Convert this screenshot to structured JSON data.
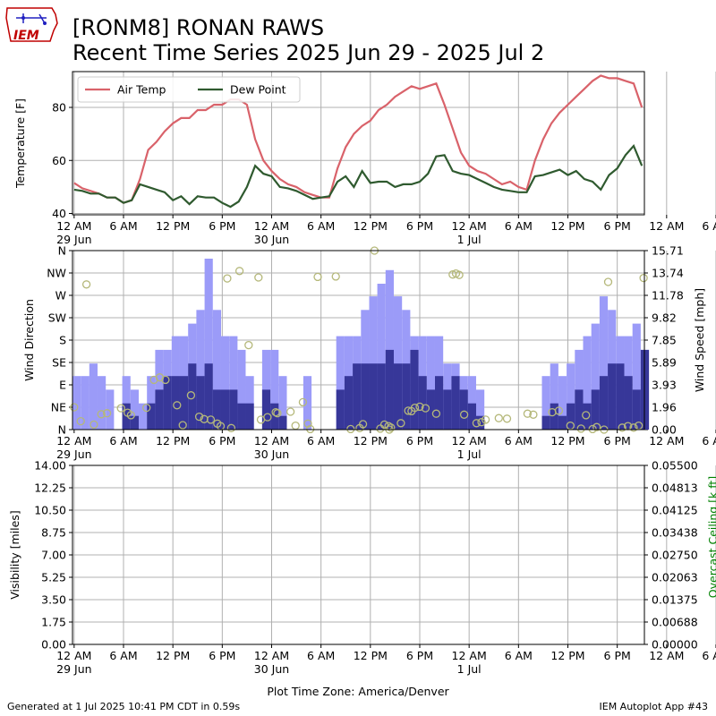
{
  "header": {
    "title_line1": "[RONM8] RONAN RAWS",
    "title_line2": "Recent Time Series 2025 Jun 29 - 2025 Jul 2",
    "logo_text": "IEM"
  },
  "footer": {
    "generated": "Generated at 1 Jul 2025 10:41 PM CDT in 0.59s",
    "app": "IEM Autoplot App #43"
  },
  "colors": {
    "air_temp": "#d9626a",
    "dew_point": "#2f5a2f",
    "gust_bar": "#9b9bf8",
    "speed_bar": "#373799",
    "direction_marker": "#b5b87a",
    "ceiling_axis": "#008000",
    "grid": "#b0b0b0"
  },
  "time_axis": {
    "tick_hours": [
      0,
      6,
      12,
      18,
      24,
      30,
      36,
      42,
      48,
      54,
      60,
      66,
      72,
      78,
      84,
      90
    ],
    "tick_labels": [
      "12 AM",
      "6 AM",
      "12 PM",
      "6 PM",
      "12 AM",
      "6 AM",
      "12 PM",
      "6 PM",
      "12 AM",
      "6 AM",
      "12 PM",
      "6 PM",
      "12 AM",
      "6 AM",
      "12 PM",
      "6 PM"
    ],
    "day_labels": [
      {
        "hour": 0,
        "label": "29 Jun"
      },
      {
        "hour": 24,
        "label": "30 Jun"
      },
      {
        "hour": 48,
        "label": "1 Jul"
      }
    ],
    "start": "2025-06-29 00:00",
    "end_hour": 69,
    "xlabel": "Plot Time Zone: America/Denver"
  },
  "chart_data": [
    {
      "type": "line",
      "ylabel": "Temperature [F]",
      "ylim": [
        39.5,
        93.5
      ],
      "yticks": [
        40,
        60,
        80
      ],
      "grid": true,
      "legend": {
        "placement": "top-left",
        "entries": [
          "Air Temp",
          "Dew Point"
        ]
      },
      "series": [
        {
          "name": "Air Temp",
          "x": [
            0,
            1,
            2,
            3,
            4,
            5,
            6,
            7,
            8,
            9,
            10,
            11,
            12,
            13,
            14,
            15,
            16,
            17,
            18,
            19,
            20,
            21,
            22,
            23,
            24,
            25,
            26,
            27,
            28,
            29,
            30,
            31,
            32,
            33,
            34,
            35,
            36,
            37,
            38,
            39,
            40,
            41,
            42,
            43,
            44,
            45,
            46,
            47,
            48,
            49,
            50,
            51,
            52,
            53,
            54,
            55,
            56,
            57,
            58,
            59,
            60,
            61,
            62,
            63,
            64,
            65,
            66,
            67,
            68,
            69
          ],
          "values": [
            51.5,
            49.5,
            48.5,
            47.5,
            46,
            46,
            44,
            45,
            53,
            64,
            67,
            71,
            74,
            76,
            76,
            79,
            79,
            81,
            81,
            83,
            83,
            81,
            68,
            60,
            56,
            53,
            51,
            50,
            48,
            47,
            46,
            46,
            57,
            65,
            70,
            73,
            75,
            79,
            81,
            84,
            86,
            88,
            87,
            88,
            89,
            81,
            72,
            63,
            58,
            56,
            55,
            53,
            51,
            52,
            50,
            49,
            60,
            68,
            74,
            78,
            81,
            84,
            87,
            90,
            92,
            91,
            91,
            90,
            89,
            80
          ]
        },
        {
          "name": "Dew Point",
          "x": [
            0,
            1,
            2,
            3,
            4,
            5,
            6,
            7,
            8,
            9,
            10,
            11,
            12,
            13,
            14,
            15,
            16,
            17,
            18,
            19,
            20,
            21,
            22,
            23,
            24,
            25,
            26,
            27,
            28,
            29,
            30,
            31,
            32,
            33,
            34,
            35,
            36,
            37,
            38,
            39,
            40,
            41,
            42,
            43,
            44,
            45,
            46,
            47,
            48,
            49,
            50,
            51,
            52,
            53,
            54,
            55,
            56,
            57,
            58,
            59,
            60,
            61,
            62,
            63,
            64,
            65,
            66,
            67,
            68,
            69
          ],
          "values": [
            49,
            48.5,
            47.5,
            47.5,
            46,
            46,
            44,
            45,
            51,
            50,
            49,
            48,
            45,
            46.5,
            43.5,
            46.5,
            46,
            46,
            44,
            42.5,
            44.5,
            50,
            58,
            55,
            54,
            50,
            49.5,
            48.5,
            47,
            45.5,
            46,
            46.5,
            52,
            54,
            50,
            56,
            51.5,
            52,
            52,
            50,
            51,
            51,
            52,
            55,
            61.5,
            62,
            56,
            55,
            54.5,
            53,
            51.5,
            50,
            49,
            48.5,
            48,
            48,
            54,
            54.5,
            55.5,
            56.5,
            54.5,
            56,
            53,
            52,
            49,
            54.5,
            57,
            62,
            65.5,
            58
          ]
        }
      ]
    },
    {
      "type": "bar",
      "ylabel": "Wind Direction",
      "y2label": "Wind Speed [mph]",
      "direction_ticks": [
        "N",
        "NE",
        "E",
        "SE",
        "S",
        "SW",
        "W",
        "NW",
        "N"
      ],
      "speed_ticks": [
        "0.00",
        "1.96",
        "3.93",
        "5.89",
        "7.85",
        "9.82",
        "11.78",
        "13.74",
        "15.71"
      ],
      "speed_lim": [
        0,
        15.71
      ],
      "grid": true,
      "series": [
        {
          "name": "Gust",
          "x": [
            0,
            1,
            2,
            3,
            4,
            5,
            6,
            7,
            8,
            9,
            10,
            11,
            12,
            13,
            14,
            15,
            16,
            17,
            18,
            19,
            20,
            21,
            22,
            23,
            24,
            25,
            26,
            27,
            28,
            29,
            30,
            31,
            32,
            33,
            34,
            35,
            36,
            37,
            38,
            39,
            40,
            41,
            42,
            43,
            44,
            45,
            46,
            47,
            48,
            49,
            50,
            51,
            52,
            53,
            54,
            55,
            56,
            57,
            58,
            59,
            60,
            61,
            62,
            63,
            64,
            65,
            66,
            67,
            68,
            69
          ],
          "values": [
            4.7,
            4.7,
            5.8,
            4.7,
            3.5,
            0,
            4.7,
            3.5,
            2.3,
            4.7,
            7,
            7,
            8.2,
            8.2,
            9.3,
            10.5,
            15,
            10.5,
            8.2,
            8.2,
            7,
            4.7,
            0,
            7,
            7,
            4.7,
            0,
            0,
            4.7,
            0,
            0,
            0,
            8.2,
            8.2,
            8.2,
            10.5,
            11.7,
            12.8,
            14,
            11.7,
            10.5,
            8.2,
            8.2,
            8.2,
            8.2,
            5.8,
            5.8,
            4.7,
            4.7,
            3.5,
            0,
            0,
            0,
            0,
            0,
            0,
            0,
            4.7,
            5.8,
            4.7,
            5.8,
            7,
            8.2,
            9.3,
            11.7,
            10.5,
            8.2,
            8.2,
            9.3,
            7
          ]
        },
        {
          "name": "Speed",
          "x": [
            0,
            1,
            2,
            3,
            4,
            5,
            6,
            7,
            8,
            9,
            10,
            11,
            12,
            13,
            14,
            15,
            16,
            17,
            18,
            19,
            20,
            21,
            22,
            23,
            24,
            25,
            26,
            27,
            28,
            29,
            30,
            31,
            32,
            33,
            34,
            35,
            36,
            37,
            38,
            39,
            40,
            41,
            42,
            43,
            44,
            45,
            46,
            47,
            48,
            49,
            50,
            51,
            52,
            53,
            54,
            55,
            56,
            57,
            58,
            59,
            60,
            61,
            62,
            63,
            64,
            65,
            66,
            67,
            68,
            69
          ],
          "values": [
            0,
            0,
            0,
            0,
            0,
            0,
            2.3,
            1.2,
            0,
            2.3,
            3.5,
            4.7,
            4.7,
            4.7,
            5.8,
            4.7,
            5.8,
            3.5,
            3.5,
            3.5,
            2.3,
            2.3,
            0,
            3.5,
            2.3,
            1.2,
            0,
            0,
            0,
            0,
            0,
            0,
            3.5,
            4.7,
            5.8,
            5.8,
            5.8,
            5.8,
            7,
            5.8,
            5.8,
            7,
            4.7,
            3.5,
            4.7,
            3.5,
            4.7,
            3.5,
            2.3,
            1.2,
            0,
            0,
            0,
            0,
            0,
            0,
            0,
            1.2,
            2.3,
            1.2,
            2.3,
            3.5,
            2.3,
            3.5,
            4.7,
            5.8,
            5.8,
            4.7,
            3.5,
            7
          ]
        },
        {
          "name": "Wind Direction",
          "type": "scatter",
          "points": [
            [
              0.0,
              45
            ],
            [
              0.8,
              17
            ],
            [
              1.5,
              292
            ],
            [
              2.4,
              10
            ],
            [
              3.3,
              31
            ],
            [
              4.0,
              33
            ],
            [
              5.7,
              43
            ],
            [
              6.5,
              34
            ],
            [
              6.9,
              29
            ],
            [
              8.8,
              44
            ],
            [
              9.7,
              100
            ],
            [
              10.4,
              105
            ],
            [
              11.1,
              100
            ],
            [
              12.5,
              49
            ],
            [
              13.2,
              9
            ],
            [
              14.2,
              69
            ],
            [
              15.2,
              26
            ],
            [
              15.8,
              21
            ],
            [
              16.6,
              20
            ],
            [
              17.4,
              12
            ],
            [
              17.8,
              7
            ],
            [
              18.6,
              304
            ],
            [
              19.1,
              3
            ],
            [
              20.1,
              319
            ],
            [
              21.2,
              170
            ],
            [
              22.4,
              306
            ],
            [
              22.7,
              20
            ],
            [
              23.5,
              25
            ],
            [
              24.5,
              35
            ],
            [
              24.7,
              33
            ],
            [
              26.3,
              36
            ],
            [
              26.9,
              8
            ],
            [
              27.8,
              55
            ],
            [
              28.4,
              12
            ],
            [
              28.7,
              1
            ],
            [
              29.6,
              307
            ],
            [
              31.8,
              308
            ],
            [
              33.6,
              1
            ],
            [
              34.7,
              3
            ],
            [
              35.1,
              11
            ],
            [
              36.5,
              360
            ],
            [
              37.2,
              2
            ],
            [
              37.7,
              10
            ],
            [
              38.2,
              7
            ],
            [
              38.3,
              0
            ],
            [
              38.5,
              4
            ],
            [
              39.7,
              13
            ],
            [
              40.6,
              38
            ],
            [
              41.0,
              37
            ],
            [
              41.4,
              44
            ],
            [
              42.0,
              46
            ],
            [
              42.7,
              43
            ],
            [
              44.0,
              32
            ],
            [
              46.0,
              312
            ],
            [
              46.4,
              314
            ],
            [
              46.8,
              311
            ],
            [
              47.4,
              30
            ],
            [
              48.9,
              13
            ],
            [
              49.5,
              15
            ],
            [
              50.0,
              20
            ],
            [
              51.6,
              23
            ],
            [
              52.6,
              22
            ],
            [
              55.1,
              32
            ],
            [
              55.8,
              30
            ],
            [
              58.1,
              35
            ],
            [
              58.9,
              38
            ],
            [
              60.3,
              8
            ],
            [
              61.6,
              2
            ],
            [
              62.2,
              29
            ],
            [
              63.0,
              1
            ],
            [
              63.5,
              5
            ],
            [
              64.4,
              0
            ],
            [
              64.9,
              297
            ],
            [
              66.6,
              4
            ],
            [
              67.3,
              7
            ],
            [
              68.0,
              4
            ],
            [
              68.6,
              8
            ],
            [
              69.2,
              305
            ]
          ]
        }
      ]
    },
    {
      "type": "line",
      "ylabel": "Visibility [miles]",
      "y2label": "Overcast Ceiling [k ft]",
      "ylim": [
        0,
        14
      ],
      "y2lim": [
        0,
        0.055
      ],
      "yticks": [
        "0.00",
        "1.75",
        "3.50",
        "5.25",
        "7.00",
        "8.75",
        "10.50",
        "12.25",
        "14.00"
      ],
      "y2ticks": [
        "0.00000",
        "0.00688",
        "0.01375",
        "0.02063",
        "0.02750",
        "0.03438",
        "0.04125",
        "0.04813",
        "0.05500"
      ],
      "grid": true,
      "series": []
    }
  ]
}
